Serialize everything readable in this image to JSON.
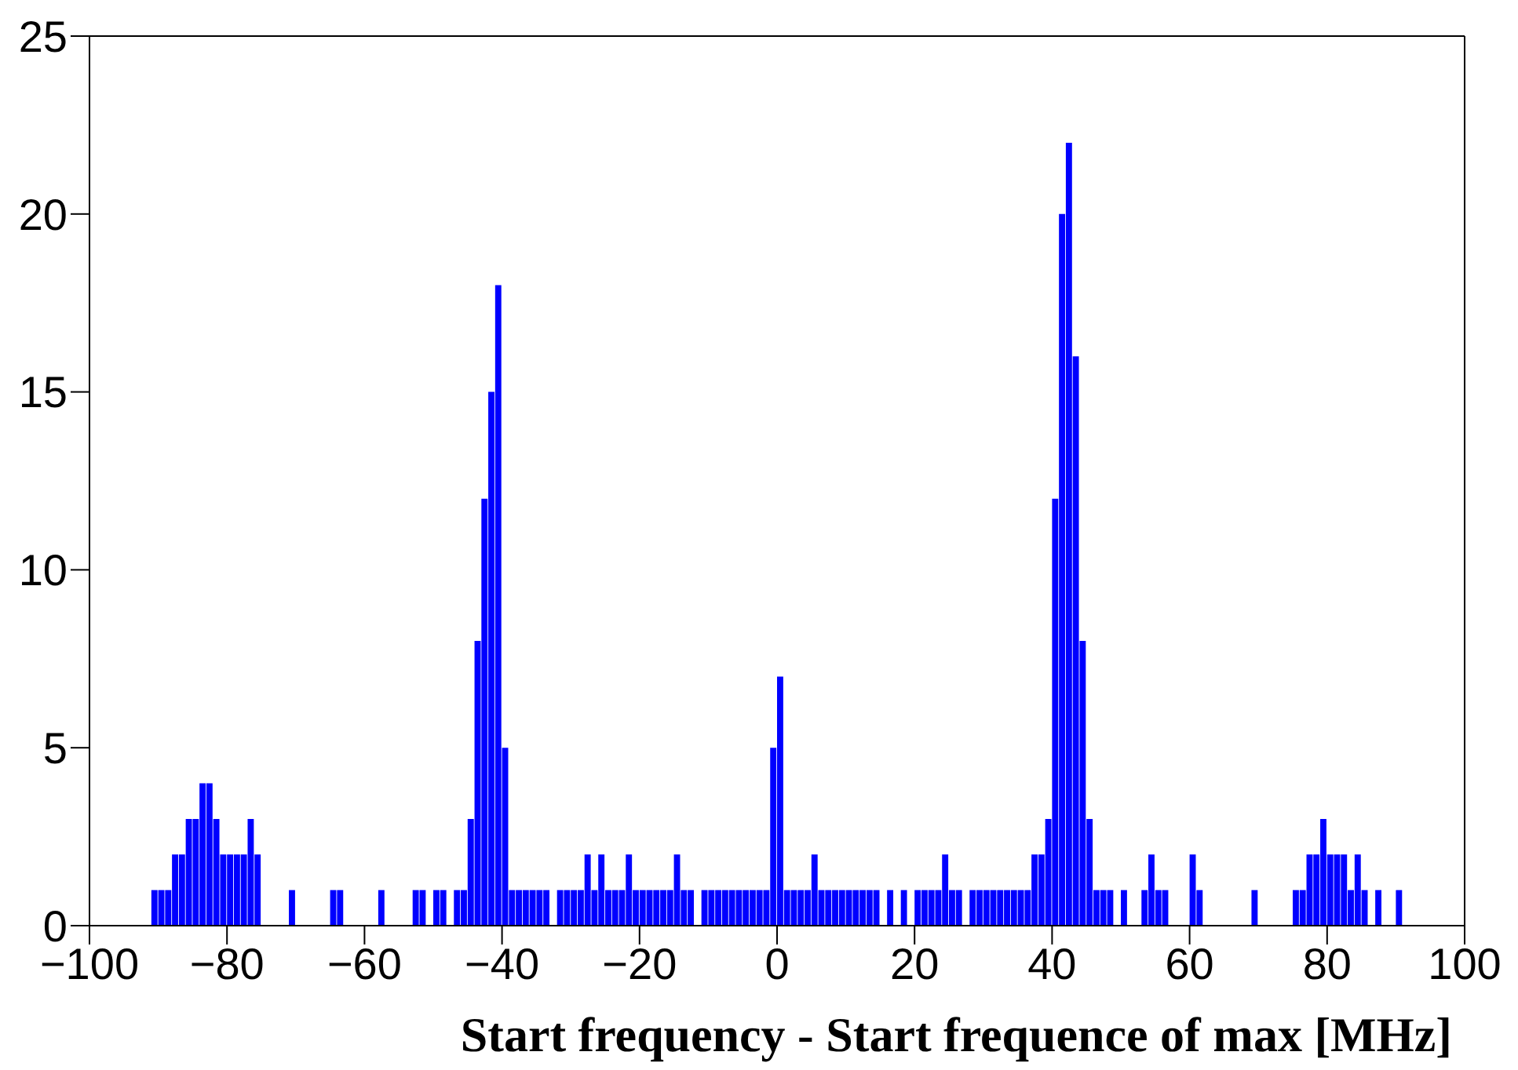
{
  "chart_data": {
    "type": "histogram",
    "xlabel": "Start frequency - Start frequence of max [MHz]",
    "color": "#0000ff",
    "bins": [
      -100,
      -99,
      -98,
      -97,
      -96,
      -95,
      -94,
      -93,
      -92,
      -91,
      -90,
      -89,
      -88,
      -87,
      -86,
      -85,
      -84,
      -83,
      -82,
      -81,
      -80,
      -79,
      -78,
      -77,
      -76,
      -75,
      -74,
      -73,
      -72,
      -71,
      -70,
      -69,
      -68,
      -67,
      -66,
      -65,
      -64,
      -63,
      -62,
      -61,
      -60,
      -59,
      -58,
      -57,
      -56,
      -55,
      -54,
      -53,
      -52,
      -51,
      -50,
      -49,
      -48,
      -47,
      -46,
      -45,
      -44,
      -43,
      -42,
      -41,
      -40,
      -39,
      -38,
      -37,
      -36,
      -35,
      -34,
      -33,
      -32,
      -31,
      -30,
      -29,
      -28,
      -27,
      -26,
      -25,
      -24,
      -23,
      -22,
      -21,
      -20,
      -19,
      -18,
      -17,
      -16,
      -15,
      -14,
      -13,
      -12,
      -11,
      -10,
      -9,
      -8,
      -7,
      -6,
      -5,
      -4,
      -3,
      -2,
      -1,
      0,
      1,
      2,
      3,
      4,
      5,
      6,
      7,
      8,
      9,
      10,
      11,
      12,
      13,
      14,
      15,
      16,
      17,
      18,
      19,
      20,
      21,
      22,
      23,
      24,
      25,
      26,
      27,
      28,
      29,
      30,
      31,
      32,
      33,
      34,
      35,
      36,
      37,
      38,
      39,
      40,
      41,
      42,
      43,
      44,
      45,
      46,
      47,
      48,
      49,
      50,
      51,
      52,
      53,
      54,
      55,
      56,
      57,
      58,
      59,
      60,
      61,
      62,
      63,
      64,
      65,
      66,
      67,
      68,
      69,
      70,
      71,
      72,
      73,
      74,
      75,
      76,
      77,
      78,
      79,
      80,
      81,
      82,
      83,
      84,
      85,
      86,
      87,
      88,
      89,
      90,
      91,
      92,
      93,
      94,
      95,
      96,
      97,
      98,
      99,
      100
    ],
    "values": [
      0,
      0,
      0,
      0,
      0,
      0,
      0,
      0,
      0,
      1,
      1,
      1,
      2,
      2,
      3,
      3,
      4,
      4,
      3,
      2,
      2,
      2,
      2,
      3,
      2,
      0,
      0,
      0,
      0,
      1,
      0,
      0,
      0,
      0,
      0,
      1,
      1,
      0,
      0,
      0,
      0,
      0,
      1,
      0,
      0,
      0,
      0,
      1,
      1,
      0,
      1,
      1,
      0,
      1,
      1,
      3,
      8,
      12,
      15,
      18,
      5,
      1,
      1,
      1,
      1,
      1,
      1,
      0,
      1,
      1,
      1,
      1,
      2,
      1,
      2,
      1,
      1,
      1,
      2,
      1,
      1,
      1,
      1,
      1,
      1,
      2,
      1,
      1,
      0,
      1,
      1,
      1,
      1,
      1,
      1,
      1,
      1,
      1,
      1,
      5,
      7,
      1,
      1,
      1,
      1,
      2,
      1,
      1,
      1,
      1,
      1,
      1,
      1,
      1,
      1,
      0,
      1,
      0,
      1,
      0,
      1,
      1,
      1,
      1,
      2,
      1,
      1,
      0,
      1,
      1,
      1,
      1,
      1,
      1,
      1,
      1,
      1,
      2,
      2,
      3,
      12,
      20,
      22,
      16,
      8,
      3,
      1,
      1,
      1,
      0,
      1,
      0,
      0,
      1,
      2,
      1,
      1,
      0,
      0,
      0,
      2,
      1,
      0,
      0,
      0,
      0,
      0,
      0,
      0,
      1,
      0,
      0,
      0,
      0,
      0,
      1,
      1,
      2,
      2,
      3,
      2,
      2,
      2,
      1,
      2,
      1,
      0,
      1,
      0,
      0,
      1,
      0,
      0,
      0,
      0,
      0,
      0,
      0,
      0,
      0
    ],
    "xlim": [
      -100,
      100
    ],
    "ylim": [
      0,
      25
    ],
    "xticks": [
      {
        "value": -100,
        "label": "−100"
      },
      {
        "value": -80,
        "label": "−80"
      },
      {
        "value": -60,
        "label": "−60"
      },
      {
        "value": -40,
        "label": "−40"
      },
      {
        "value": -20,
        "label": "−20"
      },
      0,
      20,
      40,
      60,
      80,
      100
    ],
    "yticks": [
      0,
      5,
      10,
      15,
      20,
      25
    ]
  }
}
